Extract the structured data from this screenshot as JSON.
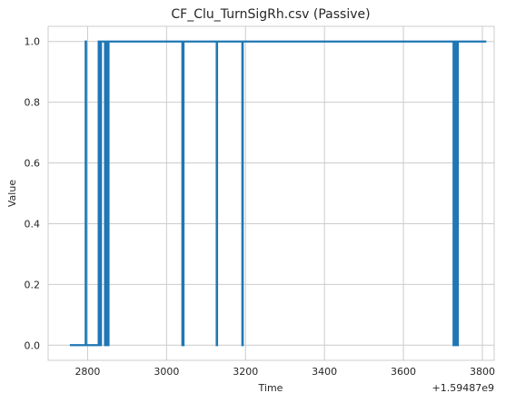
{
  "chart_data": {
    "type": "line",
    "title": "CF_Clu_TurnSigRh.csv (Passive)",
    "xlabel": "Time",
    "ylabel": "Value",
    "x_offset_label": "+1.59487e9",
    "xlim": [
      2700,
      3830
    ],
    "ylim": [
      -0.05,
      1.05
    ],
    "x_ticks": [
      2800,
      3000,
      3200,
      3400,
      3600,
      3800
    ],
    "x_tick_labels": [
      "2800",
      "3000",
      "3200",
      "3400",
      "3600",
      "3800"
    ],
    "y_ticks": [
      0.0,
      0.2,
      0.4,
      0.6,
      0.8,
      1.0
    ],
    "y_tick_labels": [
      "0.0",
      "0.2",
      "0.4",
      "0.6",
      "0.8",
      "1.0"
    ],
    "grid": true,
    "line_color": "#1f77b4",
    "series": [
      {
        "x": [
          2755,
          2795,
          2795,
          2796,
          2796,
          2828,
          2828,
          2829,
          2829,
          2830,
          2830,
          2831,
          2831,
          2832,
          2832,
          2833,
          2833,
          2834,
          2834,
          2844,
          2844,
          2845,
          2845,
          2846,
          2846,
          2847,
          2847,
          2848,
          2848,
          2849,
          2849,
          2850,
          2850,
          2851,
          2851,
          2852,
          2852,
          2853,
          2853,
          3040,
          3040,
          3041,
          3041,
          3042,
          3042,
          3043,
          3043,
          3127,
          3127,
          3128,
          3128,
          3192,
          3192,
          3193,
          3193,
          3727,
          3727,
          3728,
          3728,
          3729,
          3729,
          3730,
          3730,
          3731,
          3731,
          3732,
          3732,
          3733,
          3733,
          3734,
          3734,
          3735,
          3735,
          3736,
          3736,
          3737,
          3737,
          3738,
          3738,
          3810
        ],
        "y": [
          0,
          0,
          1,
          1,
          0,
          0,
          1,
          1,
          0,
          0,
          1,
          1,
          0,
          0,
          1,
          1,
          0,
          0,
          1,
          1,
          0,
          0,
          1,
          1,
          0,
          0,
          1,
          1,
          0,
          0,
          1,
          1,
          0,
          0,
          1,
          1,
          0,
          0,
          1,
          1,
          0,
          0,
          1,
          1,
          0,
          0,
          1,
          1,
          0,
          0,
          1,
          1,
          0,
          0,
          1,
          1,
          0,
          0,
          1,
          1,
          0,
          0,
          1,
          1,
          0,
          0,
          1,
          1,
          0,
          0,
          1,
          1,
          0,
          0,
          1,
          1,
          0,
          0,
          1,
          1
        ]
      }
    ]
  }
}
